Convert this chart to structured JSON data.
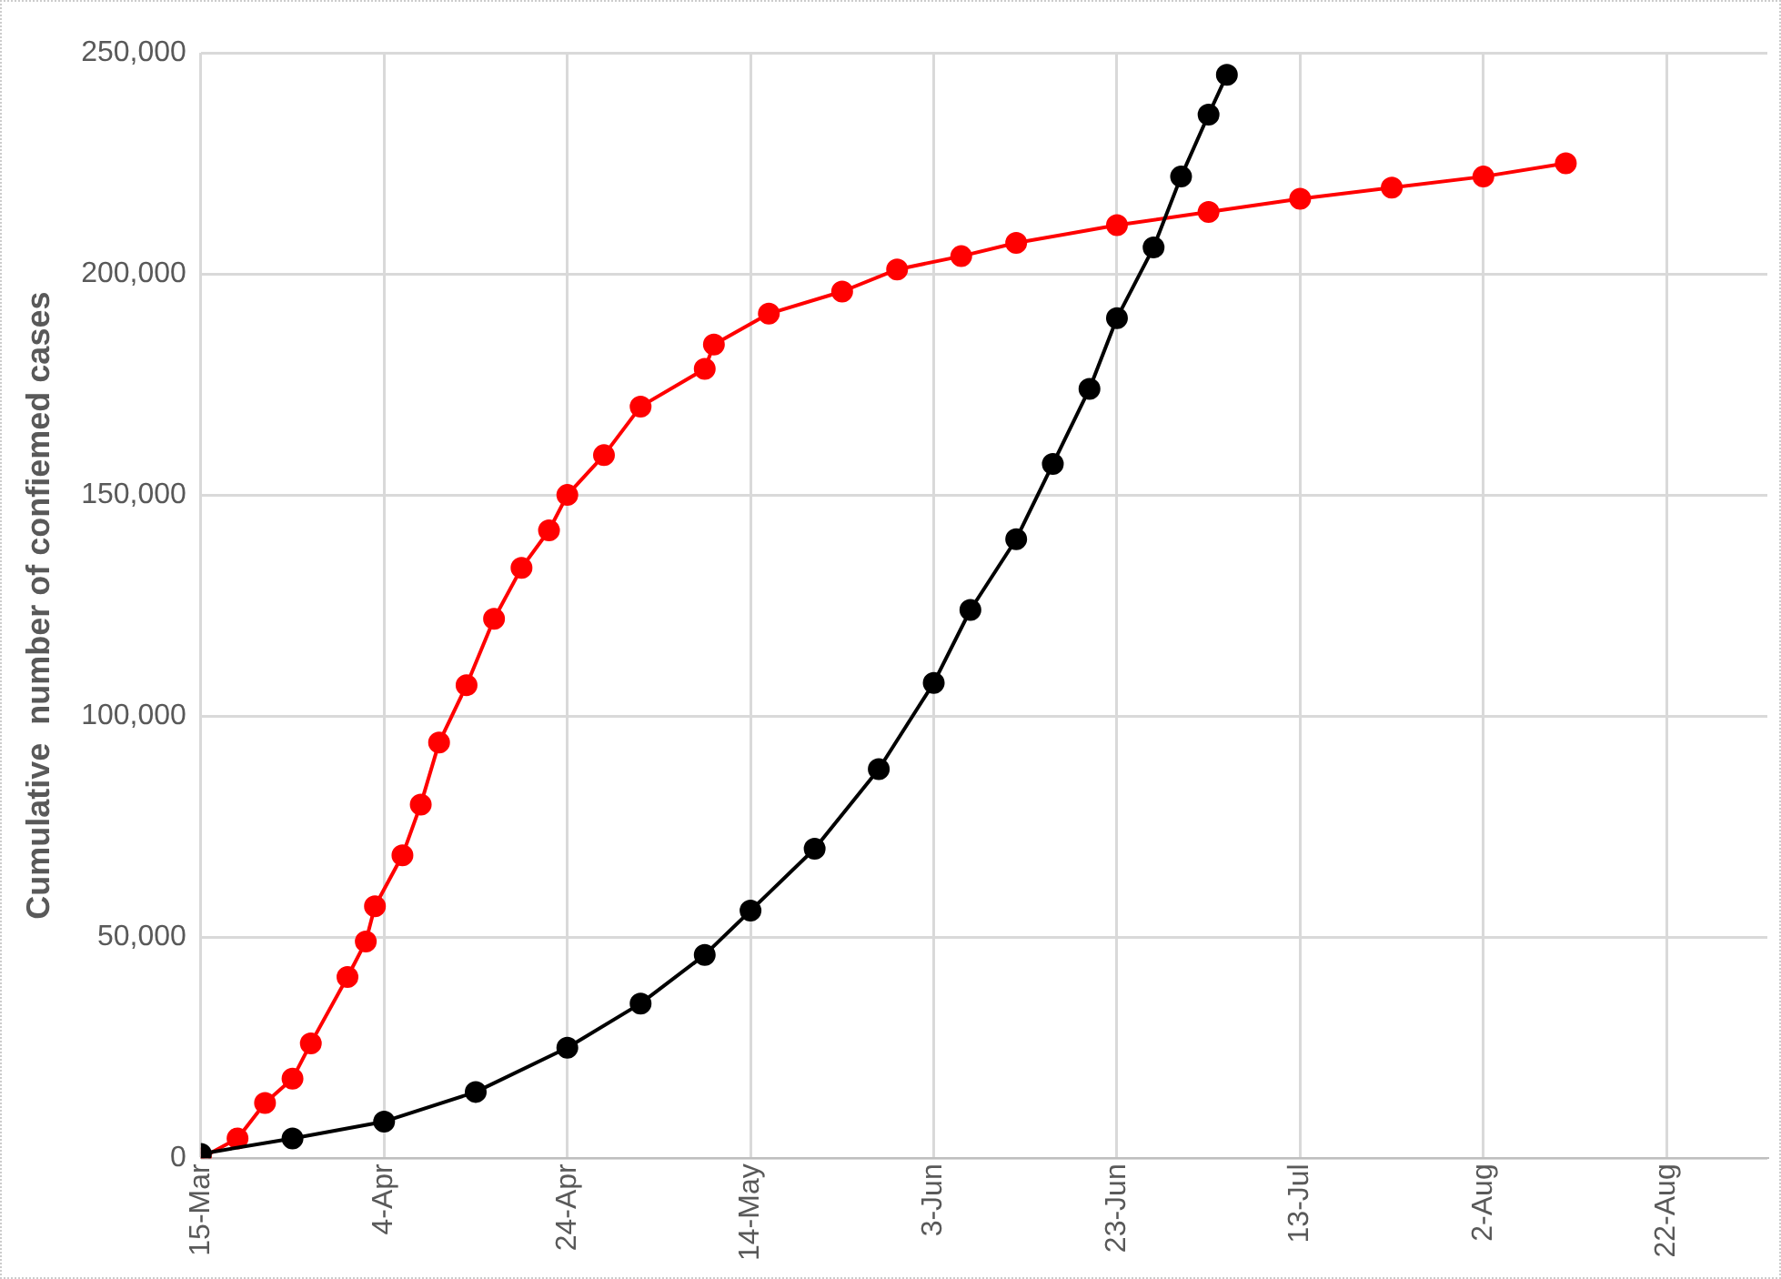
{
  "chart_data": {
    "type": "line",
    "ylabel": "Cumulative  number of confiemed cases",
    "marker": "circle",
    "grid": true,
    "legend": false,
    "xlim": [
      "--03-15",
      "--09-02"
    ],
    "xticks": [
      {
        "value": "--03-15",
        "label": "15-Mar"
      },
      {
        "value": "--04-04",
        "label": "4-Apr"
      },
      {
        "value": "--04-24",
        "label": "24-Apr"
      },
      {
        "value": "--05-14",
        "label": "14-May"
      },
      {
        "value": "--06-03",
        "label": "3-Jun"
      },
      {
        "value": "--06-23",
        "label": "23-Jun"
      },
      {
        "value": "--07-13",
        "label": "13-Jul"
      },
      {
        "value": "--08-02",
        "label": "2-Aug"
      },
      {
        "value": "--08-22",
        "label": "22-Aug"
      }
    ],
    "ylim": [
      0,
      250000
    ],
    "yticks": [
      {
        "value": 0,
        "label": "0"
      },
      {
        "value": 50000,
        "label": "50,000"
      },
      {
        "value": 100000,
        "label": "100,000"
      },
      {
        "value": 150000,
        "label": "150,000"
      },
      {
        "value": 200000,
        "label": "200,000"
      },
      {
        "value": 250000,
        "label": "250,000"
      }
    ],
    "series": [
      {
        "color": "#000000",
        "x": [
          "--03-15",
          "--03-25",
          "--04-04",
          "--04-14",
          "--04-24",
          "--05-02",
          "--05-09",
          "--05-14",
          "--05-21",
          "--05-28",
          "--06-03",
          "--06-07",
          "--06-12",
          "--06-16",
          "--06-20",
          "--06-23",
          "--06-27",
          "--06-30",
          "--07-03",
          "--07-05"
        ],
        "values": [
          1000,
          4500,
          8300,
          15000,
          25000,
          35000,
          46000,
          56000,
          70000,
          88000,
          107500,
          124000,
          140000,
          157000,
          174000,
          190000,
          206000,
          222000,
          236000,
          245000
        ]
      },
      {
        "color": "#ff0000",
        "x": [
          "--03-15",
          "--03-19",
          "--03-22",
          "--03-25",
          "--03-27",
          "--03-31",
          "--04-02",
          "--04-03",
          "--04-06",
          "--04-08",
          "--04-10",
          "--04-13",
          "--04-16",
          "--04-19",
          "--04-22",
          "--04-24",
          "--04-28",
          "--05-02",
          "--05-09",
          "--05-10",
          "--05-16",
          "--05-24",
          "--05-30",
          "--06-06",
          "--06-12",
          "--06-23",
          "--07-03",
          "--07-13",
          "--07-23",
          "--08-02",
          "--08-11"
        ],
        "values": [
          0,
          4500,
          12500,
          18000,
          26000,
          41000,
          49000,
          57000,
          68500,
          80000,
          94000,
          107000,
          122000,
          133500,
          142000,
          150000,
          159000,
          170000,
          178500,
          184000,
          191000,
          196000,
          201000,
          204000,
          207000,
          211000,
          214000,
          217000,
          219500,
          222000,
          225000
        ]
      }
    ]
  }
}
